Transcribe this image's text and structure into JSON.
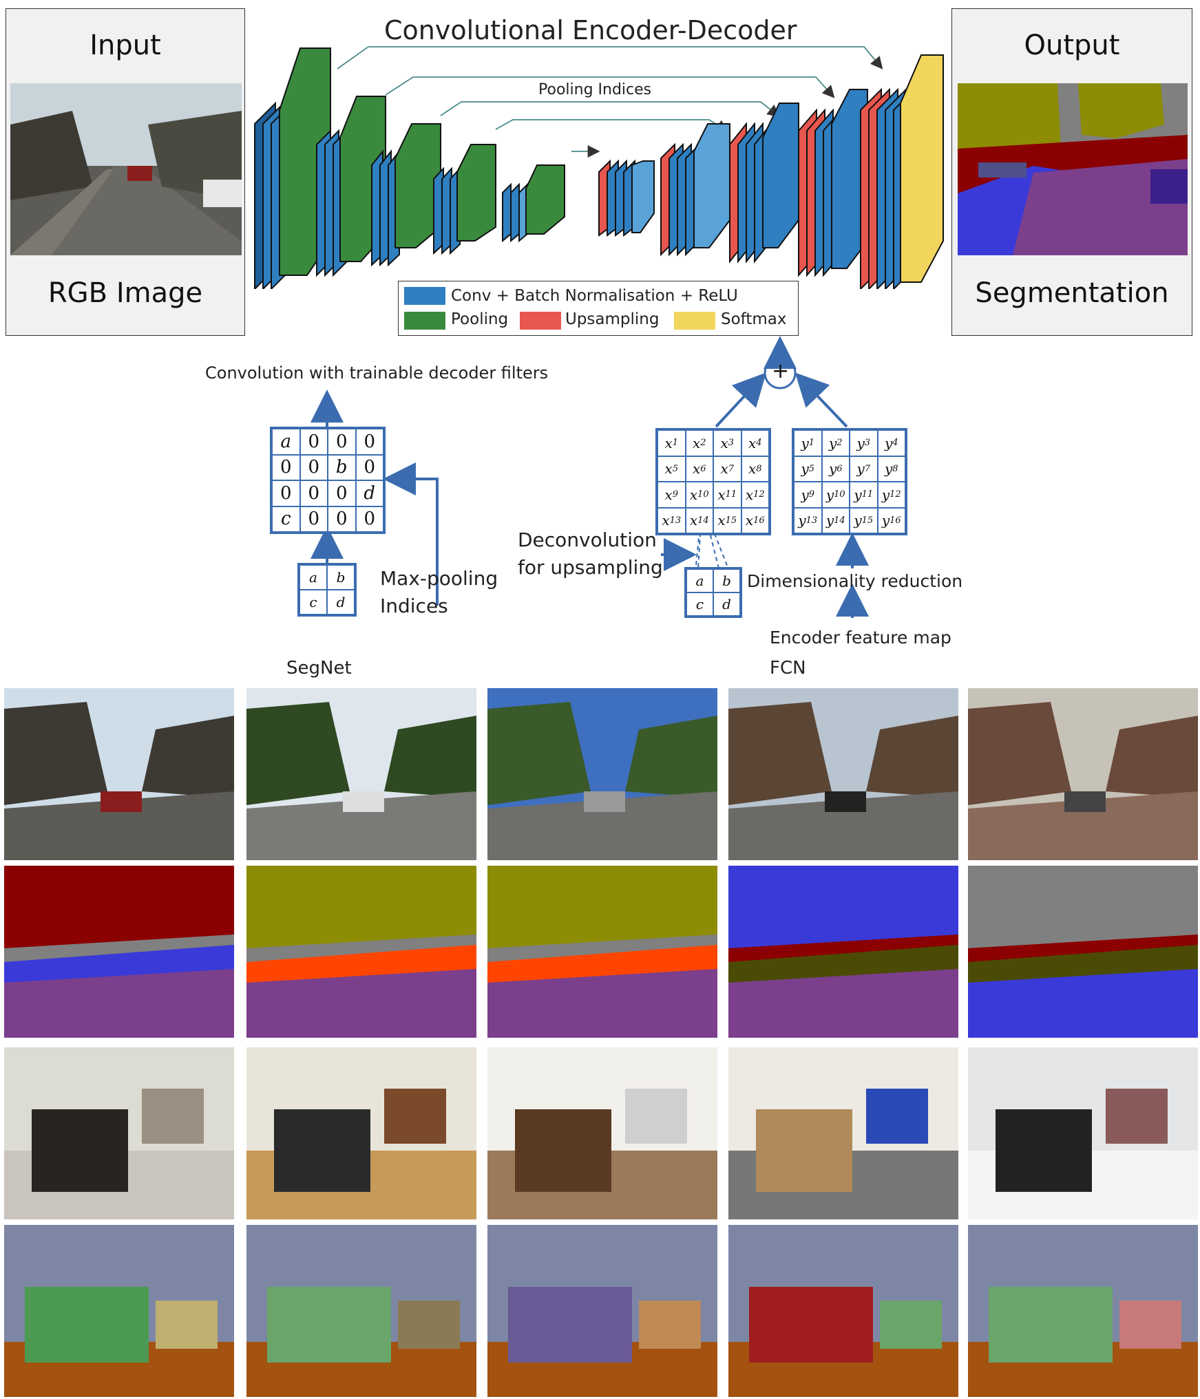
{
  "top": {
    "title": "Convolutional Encoder-Decoder",
    "pooling_label": "Pooling Indices",
    "input_title": "Input",
    "input_caption": "RGB Image",
    "output_title": "Output",
    "output_caption": "Segmentation"
  },
  "legend": {
    "conv": "Conv + Batch Normalisation + ReLU",
    "pooling": "Pooling",
    "upsampling": "Upsampling",
    "softmax": "Softmax",
    "colors": {
      "conv": "#2f7fc1",
      "pooling": "#3a8a3e",
      "upsampling": "#e8574f",
      "softmax": "#f2d55c"
    }
  },
  "segnet": {
    "title": "SegNet",
    "top_label": "Convolution with trainable decoder filters",
    "side_label": [
      "Max-pooling",
      "Indices"
    ],
    "matrix": [
      [
        "a",
        "0",
        "0",
        "0"
      ],
      [
        "0",
        "0",
        "b",
        "0"
      ],
      [
        "0",
        "0",
        "0",
        "d"
      ],
      [
        "c",
        "0",
        "0",
        "0"
      ]
    ],
    "small": [
      [
        "a",
        "b"
      ],
      [
        "c",
        "d"
      ]
    ]
  },
  "fcn": {
    "title": "FCN",
    "deconv_label": [
      "Deconvolution",
      "for upsampling"
    ],
    "dim_label": "Dimensionality reduction",
    "encoder_label": "Encoder feature map",
    "plus": "+",
    "x": [
      [
        "x1",
        "x2",
        "x3",
        "x4"
      ],
      [
        "x5",
        "x6",
        "x7",
        "x8"
      ],
      [
        "x9",
        "x10",
        "x11",
        "x12"
      ],
      [
        "x13",
        "x14",
        "x15",
        "x16"
      ]
    ],
    "y": [
      [
        "y1",
        "y2",
        "y3",
        "y4"
      ],
      [
        "y5",
        "y6",
        "y7",
        "y8"
      ],
      [
        "y9",
        "y10",
        "y11",
        "y12"
      ],
      [
        "y13",
        "y14",
        "y15",
        "y16"
      ]
    ],
    "small": [
      [
        "a",
        "b"
      ],
      [
        "c",
        "d"
      ]
    ]
  },
  "examples": {
    "rows": [
      "road-scene-photo",
      "road-scene-segmentation",
      "indoor-scene-photo",
      "indoor-scene-segmentation"
    ],
    "columns": 5
  }
}
